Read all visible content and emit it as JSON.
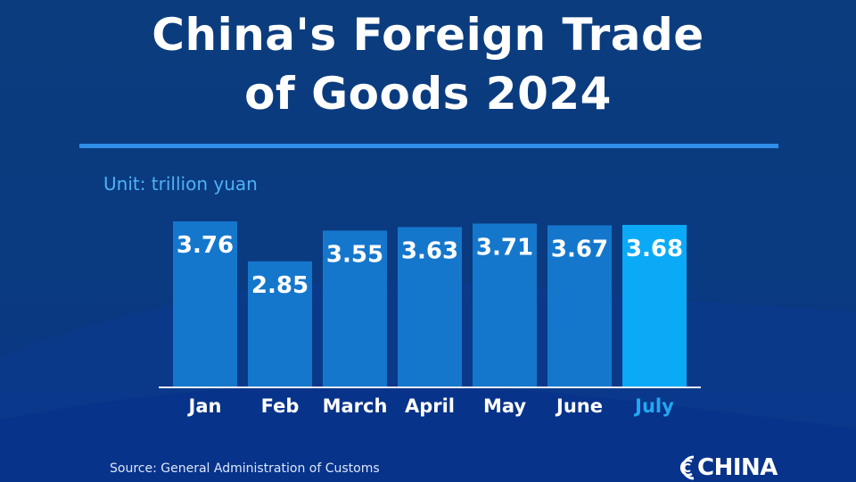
{
  "title": {
    "line1": "China's Foreign Trade",
    "line2": "of Goods 2024"
  },
  "unit_label": "Unit: trillion yuan",
  "source": "Source: General Administration of Customs",
  "logo": {
    "text": "CHINA"
  },
  "colors": {
    "bar": "#1577cc",
    "bar_highlight": "#0aaaf7",
    "label_highlight": "#21a9f2",
    "label": "#ffffff"
  },
  "chart_data": {
    "type": "bar",
    "categories": [
      "Jan",
      "Feb",
      "March",
      "April",
      "May",
      "June",
      "July"
    ],
    "values": [
      3.76,
      2.85,
      3.55,
      3.63,
      3.71,
      3.67,
      3.68
    ],
    "highlight_index": 6,
    "title": "China's Foreign Trade of Goods 2024",
    "ylabel": "Unit: trillion yuan",
    "xlabel": "",
    "grid": false,
    "legend": "none"
  }
}
